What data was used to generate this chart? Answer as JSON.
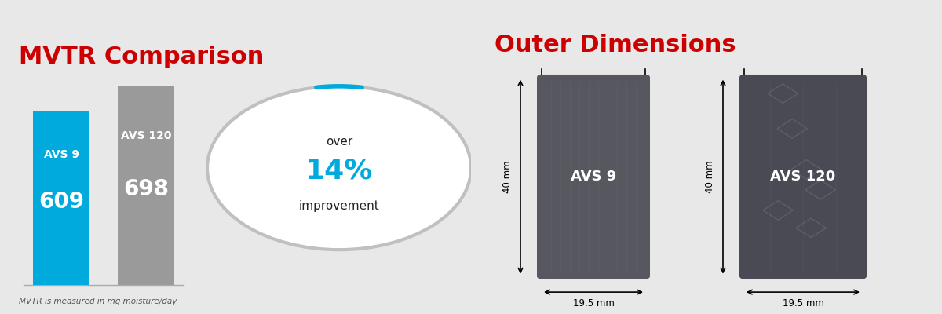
{
  "bg_color": "#e8e8e8",
  "red_bar_color": "#cc0000",
  "title_left": "MVTR Comparison",
  "title_right": "Outer Dimensions",
  "title_color": "#cc0000",
  "bar_avs9_value": 609,
  "bar_avs120_value": 698,
  "bar_avs9_color": "#00aadd",
  "bar_avs120_color": "#9a9a9a",
  "bar_avs9_label": "AVS 9",
  "bar_avs120_label": "AVS 120",
  "footnote": "MVTR is measured in mg moisture/day",
  "circle_text_over": "over",
  "circle_text_pct": "14%",
  "circle_text_improvement": "improvement",
  "circle_color_arc_blue": "#00aadd",
  "circle_color_arc_gray": "#c0c0c0",
  "avs9_label": "AVS 9",
  "avs120_label": "AVS 120",
  "dim_height": "40 mm",
  "dim_width": "19.5 mm",
  "rect_color_dark": "#575760",
  "rect_color_darker": "#4a4a55",
  "white_text": "#ffffff",
  "black_text": "#222222",
  "divider_color": "#cccccc"
}
